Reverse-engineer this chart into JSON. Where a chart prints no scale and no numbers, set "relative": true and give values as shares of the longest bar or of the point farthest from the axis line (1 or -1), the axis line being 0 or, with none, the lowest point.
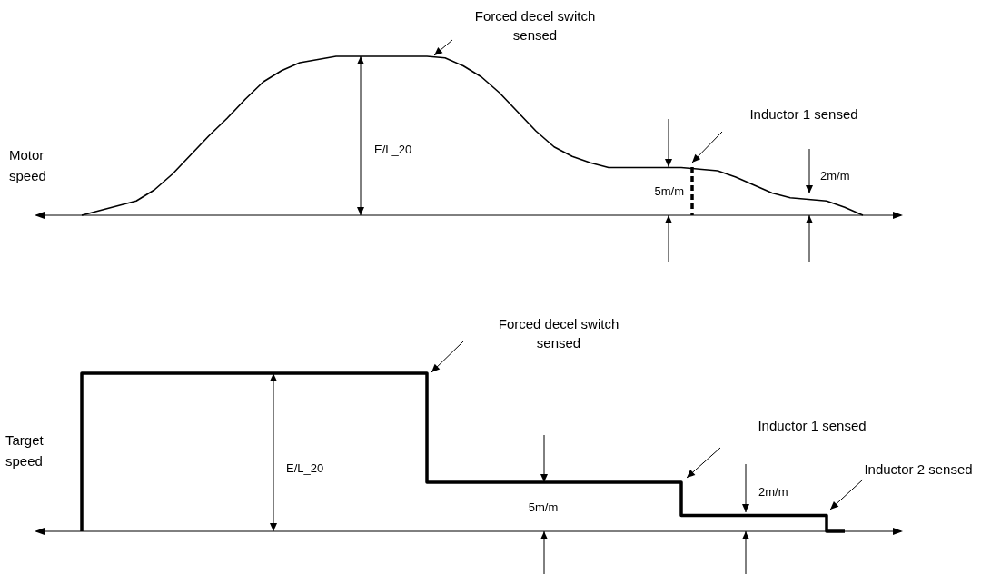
{
  "chart_data": [
    {
      "type": "line",
      "ylabel": "Motor speed",
      "relative": true,
      "annotations": [
        "Forced decel switch sensed",
        "Inductor 1 sensed",
        "E/L_20",
        "5m/m",
        "2m/m"
      ],
      "categories": [
        null,
        null,
        null,
        null,
        null,
        null,
        null,
        null,
        null,
        null,
        null,
        null,
        null,
        null,
        null,
        null,
        null,
        null,
        null,
        null,
        null,
        null,
        null,
        null,
        null,
        null,
        null,
        null,
        null,
        null,
        null,
        null,
        null,
        null,
        null,
        null,
        null,
        null,
        null,
        null,
        null,
        null,
        null,
        null,
        null,
        null,
        null,
        null
      ],
      "series": [
        {
          "color": "#000000",
          "values": [
            null,
            null,
            0,
            0.03,
            0.06,
            0.09,
            0.16,
            0.26,
            0.38,
            0.5,
            0.61,
            0.73,
            0.84,
            0.91,
            0.96,
            0.98,
            1,
            1,
            1,
            1,
            1,
            1,
            0.99,
            0.94,
            0.87,
            0.77,
            0.65,
            0.53,
            0.43,
            0.37,
            0.33,
            0.3,
            0.3,
            0.3,
            0.3,
            0.3,
            0.29,
            0.28,
            0.24,
            0.19,
            0.14,
            0.11,
            0.1,
            0.09,
            0.05,
            0,
            null,
            null
          ]
        }
      ]
    },
    {
      "type": "step",
      "ylabel": "Target speed",
      "relative": true,
      "annotations": [
        "Forced decel switch sensed",
        "E/L_20",
        "5m/m",
        "Inductor 1 sensed",
        "2m/m",
        "Inductor 2 sensed"
      ],
      "categories": [
        null,
        null,
        null,
        null,
        null,
        null,
        null,
        null,
        null,
        null,
        null,
        null,
        null,
        null,
        null,
        null,
        null,
        null,
        null,
        null,
        null,
        null,
        null,
        null,
        null,
        null,
        null,
        null,
        null,
        null,
        null,
        null,
        null,
        null,
        null,
        null,
        null,
        null,
        null,
        null,
        null,
        null,
        null,
        null,
        null,
        null,
        null,
        null
      ],
      "series": [
        {
          "color": "#000000",
          "values": [
            null,
            null,
            0,
            1,
            1,
            1,
            1,
            1,
            1,
            1,
            1,
            1,
            1,
            1,
            1,
            1,
            1,
            1,
            1,
            1,
            1,
            1,
            0.31,
            0.31,
            0.31,
            0.31,
            0.31,
            0.31,
            0.31,
            0.31,
            0.31,
            0.31,
            0.31,
            0.31,
            0.31,
            0.31,
            0.1,
            0.1,
            0.1,
            0.1,
            0.1,
            0.1,
            0.1,
            0.1,
            0,
            null,
            null,
            null
          ]
        }
      ]
    }
  ]
}
